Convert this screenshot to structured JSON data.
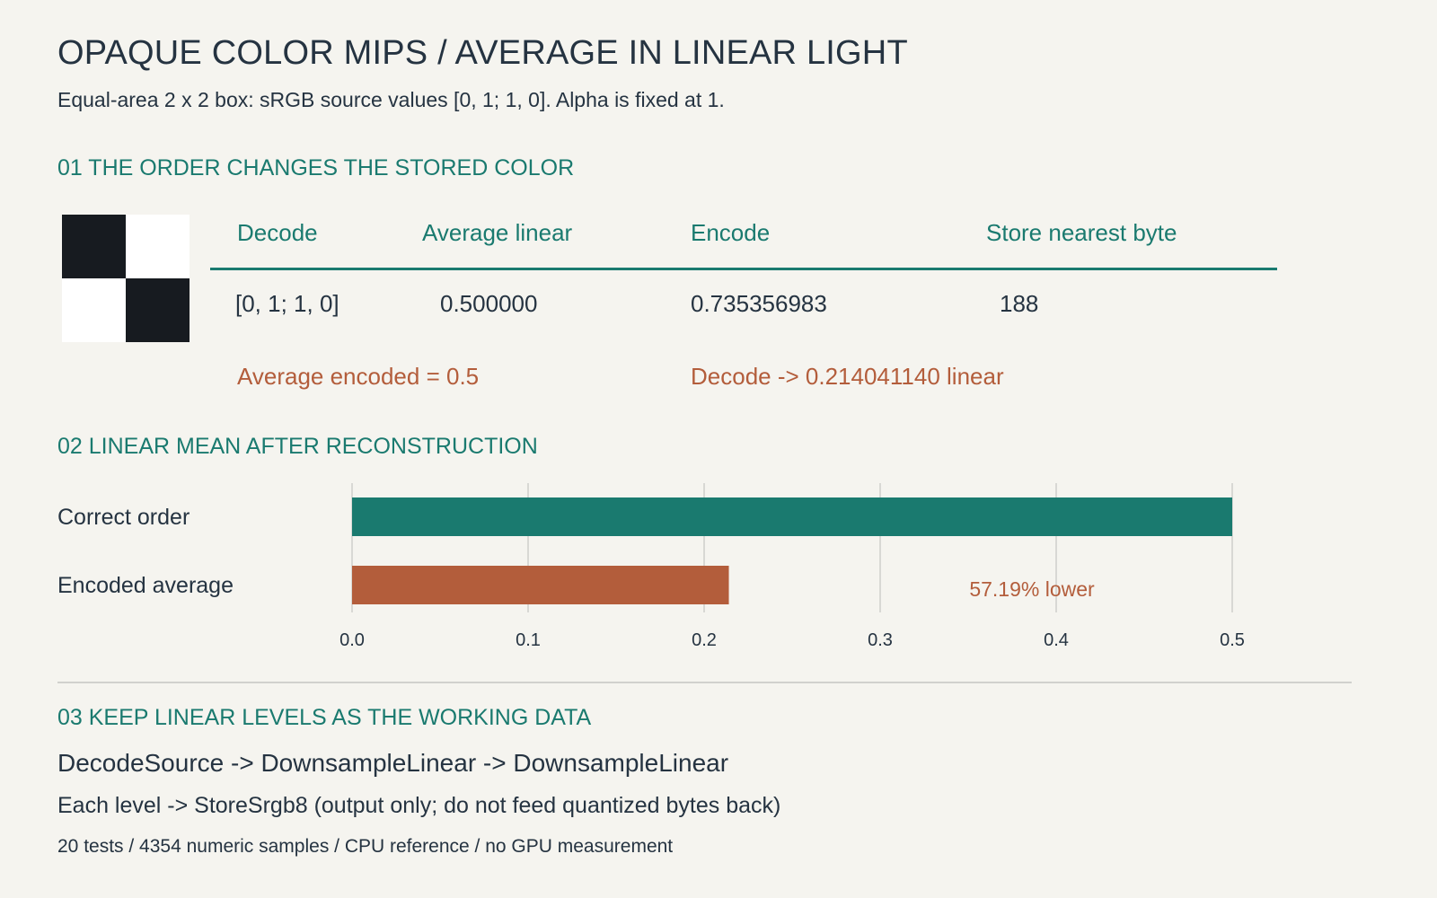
{
  "header": {
    "title": "OPAQUE COLOR MIPS / AVERAGE IN LINEAR LIGHT",
    "subtitle": "Equal-area 2 x 2 box: sRGB source values [0, 1; 1, 0]. Alpha is fixed at 1."
  },
  "section1": {
    "heading": "01 THE ORDER CHANGES THE STORED COLOR",
    "swatch": [
      "#171b20",
      "#ffffff",
      "#ffffff",
      "#171b20"
    ],
    "columns": [
      "Decode",
      "Average linear",
      "Encode",
      "Store nearest byte"
    ],
    "row": [
      "[0, 1; 1, 0]",
      "0.500000",
      "0.735356983",
      "188"
    ],
    "notes": {
      "left": "Average encoded = 0.5",
      "right": "Decode -> 0.214041140 linear"
    }
  },
  "section2": {
    "heading": "02 LINEAR MEAN AFTER RECONSTRUCTION",
    "annotation": "57.19% lower"
  },
  "chart_data": {
    "type": "bar",
    "orientation": "horizontal",
    "categories": [
      "Correct order",
      "Encoded average"
    ],
    "values": [
      0.5,
      0.21404114
    ],
    "colors": [
      "#1a7a6f",
      "#b35d3b"
    ],
    "xlim": [
      0,
      0.5
    ],
    "xticks": [
      "0.0",
      "0.1",
      "0.2",
      "0.3",
      "0.4",
      "0.5"
    ],
    "grid": true,
    "annotation": "57.19% lower"
  },
  "section3": {
    "heading": "03 KEEP LINEAR LEVELS AS THE WORKING DATA",
    "flow": "DecodeSource -> DownsampleLinear -> DownsampleLinear",
    "store": "Each level -> StoreSrgb8 (output only; do not feed quantized bytes back)",
    "footer": "20 tests / 4354 numeric samples / CPU reference / no GPU measurement"
  }
}
